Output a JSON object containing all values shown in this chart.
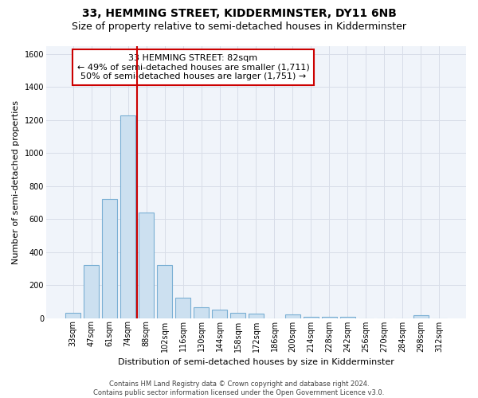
{
  "title": "33, HEMMING STREET, KIDDERMINSTER, DY11 6NB",
  "subtitle": "Size of property relative to semi-detached houses in Kidderminster",
  "xlabel": "Distribution of semi-detached houses by size in Kidderminster",
  "ylabel": "Number of semi-detached properties",
  "categories": [
    "33sqm",
    "47sqm",
    "61sqm",
    "74sqm",
    "88sqm",
    "102sqm",
    "116sqm",
    "130sqm",
    "144sqm",
    "158sqm",
    "172sqm",
    "186sqm",
    "200sqm",
    "214sqm",
    "228sqm",
    "242sqm",
    "256sqm",
    "270sqm",
    "284sqm",
    "298sqm",
    "312sqm"
  ],
  "values": [
    30,
    320,
    720,
    1230,
    640,
    320,
    125,
    65,
    50,
    30,
    25,
    0,
    20,
    5,
    5,
    5,
    0,
    0,
    0,
    15,
    0
  ],
  "bar_color": "#cce0f0",
  "bar_edge_color": "#7aafd4",
  "vline_pos": 3.5,
  "vline_color": "#cc0000",
  "annotation_line1": "33 HEMMING STREET: 82sqm",
  "annotation_line2": "← 49% of semi-detached houses are smaller (1,711)",
  "annotation_line3": "50% of semi-detached houses are larger (1,751) →",
  "ylim": [
    0,
    1650
  ],
  "yticks": [
    0,
    200,
    400,
    600,
    800,
    1000,
    1200,
    1400,
    1600
  ],
  "footer": "Contains HM Land Registry data © Crown copyright and database right 2024.\nContains public sector information licensed under the Open Government Licence v3.0.",
  "bg_color": "#ffffff",
  "plot_bg_color": "#f0f4fa",
  "grid_color": "#d8dde8",
  "title_fontsize": 10,
  "subtitle_fontsize": 9,
  "tick_fontsize": 7,
  "label_fontsize": 8,
  "annotation_fontsize": 8,
  "footer_fontsize": 6
}
